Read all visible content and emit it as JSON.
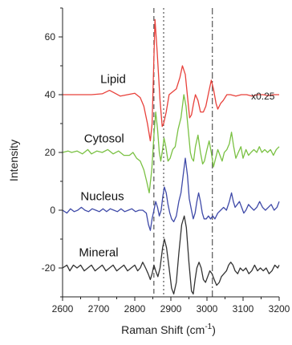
{
  "chart_data": {
    "type": "line",
    "title": "",
    "xlabel": "Raman Shift (cm",
    "xlabel_sup": "-1",
    "xlabel_close": ")",
    "ylabel": "Intensity",
    "xlim": [
      2600,
      3200
    ],
    "ylim": [
      -30,
      70
    ],
    "x_ticks": [
      2600,
      2700,
      2800,
      2900,
      3000,
      3100,
      3200
    ],
    "y_ticks": [
      -20,
      0,
      20,
      40,
      60
    ],
    "grid": false,
    "reference_lines": [
      {
        "x": 2853,
        "style": "dashed"
      },
      {
        "x": 2880,
        "style": "dotted"
      },
      {
        "x": 3015,
        "style": "dashdot"
      }
    ],
    "series": [
      {
        "name": "Lipid",
        "color": "#e8413b",
        "annotation": "x0.25",
        "points": [
          [
            2600,
            40
          ],
          [
            2640,
            40
          ],
          [
            2680,
            40
          ],
          [
            2710,
            40.3
          ],
          [
            2730,
            41.5
          ],
          [
            2745,
            40.5
          ],
          [
            2760,
            39.5
          ],
          [
            2780,
            40
          ],
          [
            2800,
            40.5
          ],
          [
            2815,
            39
          ],
          [
            2825,
            36
          ],
          [
            2835,
            30
          ],
          [
            2843,
            24
          ],
          [
            2848,
            30
          ],
          [
            2852,
            48
          ],
          [
            2856,
            66
          ],
          [
            2862,
            55
          ],
          [
            2870,
            38
          ],
          [
            2876,
            29
          ],
          [
            2880,
            30
          ],
          [
            2887,
            34
          ],
          [
            2895,
            40
          ],
          [
            2905,
            41
          ],
          [
            2915,
            42
          ],
          [
            2925,
            46
          ],
          [
            2932,
            50
          ],
          [
            2940,
            47
          ],
          [
            2947,
            38
          ],
          [
            2952,
            32
          ],
          [
            2957,
            33
          ],
          [
            2963,
            37
          ],
          [
            2968,
            40
          ],
          [
            2975,
            38
          ],
          [
            2982,
            34
          ],
          [
            2990,
            34
          ],
          [
            2997,
            36
          ],
          [
            3005,
            41
          ],
          [
            3012,
            45
          ],
          [
            3018,
            42
          ],
          [
            3025,
            37
          ],
          [
            3030,
            35
          ],
          [
            3038,
            37
          ],
          [
            3045,
            38
          ],
          [
            3055,
            40
          ],
          [
            3065,
            40
          ],
          [
            3080,
            39.5
          ],
          [
            3095,
            40
          ],
          [
            3110,
            40
          ],
          [
            3125,
            39.5
          ],
          [
            3140,
            40
          ],
          [
            3155,
            40
          ],
          [
            3170,
            39.7
          ],
          [
            3185,
            40
          ],
          [
            3200,
            40
          ]
        ]
      },
      {
        "name": "Cytosol",
        "color": "#7ac143",
        "points": [
          [
            2600,
            20
          ],
          [
            2615,
            20.5
          ],
          [
            2625,
            20
          ],
          [
            2640,
            20.5
          ],
          [
            2655,
            19.5
          ],
          [
            2670,
            21
          ],
          [
            2680,
            19.5
          ],
          [
            2695,
            20.5
          ],
          [
            2710,
            20
          ],
          [
            2725,
            21
          ],
          [
            2740,
            19.5
          ],
          [
            2755,
            20.5
          ],
          [
            2770,
            19
          ],
          [
            2785,
            19
          ],
          [
            2795,
            20
          ],
          [
            2805,
            18
          ],
          [
            2815,
            17
          ],
          [
            2825,
            14
          ],
          [
            2833,
            10
          ],
          [
            2840,
            6
          ],
          [
            2847,
            14
          ],
          [
            2853,
            26
          ],
          [
            2858,
            34
          ],
          [
            2863,
            28
          ],
          [
            2868,
            20
          ],
          [
            2872,
            17
          ],
          [
            2877,
            21
          ],
          [
            2881,
            25
          ],
          [
            2886,
            22
          ],
          [
            2892,
            17
          ],
          [
            2898,
            18
          ],
          [
            2905,
            21
          ],
          [
            2912,
            22
          ],
          [
            2920,
            28
          ],
          [
            2928,
            32
          ],
          [
            2936,
            40
          ],
          [
            2942,
            36
          ],
          [
            2948,
            28
          ],
          [
            2954,
            20
          ],
          [
            2958,
            18
          ],
          [
            2963,
            17
          ],
          [
            2968,
            22
          ],
          [
            2975,
            26
          ],
          [
            2982,
            20
          ],
          [
            2988,
            16
          ],
          [
            2993,
            17
          ],
          [
            3000,
            21
          ],
          [
            3006,
            24
          ],
          [
            3012,
            20
          ],
          [
            3018,
            15
          ],
          [
            3024,
            18
          ],
          [
            3030,
            21
          ],
          [
            3036,
            19
          ],
          [
            3042,
            17
          ],
          [
            3048,
            20
          ],
          [
            3055,
            21
          ],
          [
            3062,
            23
          ],
          [
            3068,
            27
          ],
          [
            3074,
            22
          ],
          [
            3080,
            18
          ],
          [
            3087,
            20
          ],
          [
            3094,
            22
          ],
          [
            3100,
            18
          ],
          [
            3108,
            21
          ],
          [
            3115,
            19
          ],
          [
            3122,
            20
          ],
          [
            3130,
            21
          ],
          [
            3138,
            20
          ],
          [
            3145,
            22
          ],
          [
            3152,
            20
          ],
          [
            3160,
            21
          ],
          [
            3168,
            20
          ],
          [
            3176,
            21
          ],
          [
            3184,
            19
          ],
          [
            3192,
            21
          ],
          [
            3200,
            22
          ]
        ]
      },
      {
        "name": "Nucleus",
        "color": "#3f4aa8",
        "points": [
          [
            2600,
            0
          ],
          [
            2612,
            -1
          ],
          [
            2622,
            0.5
          ],
          [
            2632,
            -0.5
          ],
          [
            2642,
            0
          ],
          [
            2652,
            1
          ],
          [
            2662,
            0
          ],
          [
            2672,
            -0.5
          ],
          [
            2682,
            0.5
          ],
          [
            2692,
            0
          ],
          [
            2702,
            -0.5
          ],
          [
            2712,
            0.5
          ],
          [
            2722,
            -0.5
          ],
          [
            2732,
            0.5
          ],
          [
            2742,
            0
          ],
          [
            2752,
            -0.5
          ],
          [
            2762,
            0.5
          ],
          [
            2772,
            -0.5
          ],
          [
            2782,
            0
          ],
          [
            2792,
            0.5
          ],
          [
            2802,
            -0.5
          ],
          [
            2812,
            0
          ],
          [
            2822,
            0
          ],
          [
            2832,
            -1
          ],
          [
            2838,
            -5
          ],
          [
            2843,
            -7
          ],
          [
            2848,
            -3
          ],
          [
            2853,
            0
          ],
          [
            2858,
            3
          ],
          [
            2863,
            1
          ],
          [
            2868,
            -2
          ],
          [
            2873,
            0
          ],
          [
            2878,
            5
          ],
          [
            2882,
            8
          ],
          [
            2887,
            6
          ],
          [
            2892,
            2
          ],
          [
            2897,
            -1
          ],
          [
            2902,
            -3
          ],
          [
            2908,
            -4
          ],
          [
            2915,
            -2
          ],
          [
            2922,
            3
          ],
          [
            2928,
            6
          ],
          [
            2934,
            12
          ],
          [
            2940,
            18
          ],
          [
            2946,
            12
          ],
          [
            2951,
            4
          ],
          [
            2957,
            0
          ],
          [
            2962,
            -3
          ],
          [
            2967,
            -1
          ],
          [
            2972,
            3
          ],
          [
            2977,
            6
          ],
          [
            2982,
            3
          ],
          [
            2987,
            -1
          ],
          [
            2992,
            -3
          ],
          [
            2998,
            -3
          ],
          [
            3004,
            -2
          ],
          [
            3010,
            -3
          ],
          [
            3016,
            -2
          ],
          [
            3022,
            -3
          ],
          [
            3030,
            -1
          ],
          [
            3038,
            0
          ],
          [
            3046,
            1
          ],
          [
            3054,
            0
          ],
          [
            3062,
            3
          ],
          [
            3068,
            6
          ],
          [
            3073,
            3
          ],
          [
            3078,
            1
          ],
          [
            3084,
            2
          ],
          [
            3090,
            3
          ],
          [
            3096,
            1
          ],
          [
            3102,
            -1
          ],
          [
            3108,
            0
          ],
          [
            3115,
            2
          ],
          [
            3122,
            1
          ],
          [
            3130,
            0
          ],
          [
            3138,
            1
          ],
          [
            3146,
            3
          ],
          [
            3154,
            1
          ],
          [
            3162,
            0
          ],
          [
            3170,
            1
          ],
          [
            3178,
            2
          ],
          [
            3186,
            0
          ],
          [
            3194,
            1
          ],
          [
            3200,
            3
          ]
        ]
      },
      {
        "name": "Mineral",
        "color": "#333333",
        "points": [
          [
            2600,
            -20
          ],
          [
            2612,
            -19
          ],
          [
            2620,
            -21
          ],
          [
            2630,
            -19
          ],
          [
            2640,
            -20
          ],
          [
            2650,
            -19
          ],
          [
            2660,
            -21
          ],
          [
            2670,
            -20
          ],
          [
            2680,
            -19
          ],
          [
            2690,
            -21
          ],
          [
            2700,
            -20
          ],
          [
            2710,
            -19
          ],
          [
            2720,
            -21
          ],
          [
            2730,
            -20
          ],
          [
            2740,
            -19
          ],
          [
            2750,
            -21
          ],
          [
            2760,
            -20
          ],
          [
            2770,
            -19
          ],
          [
            2780,
            -21
          ],
          [
            2790,
            -20
          ],
          [
            2800,
            -19
          ],
          [
            2808,
            -21
          ],
          [
            2815,
            -20
          ],
          [
            2822,
            -18
          ],
          [
            2830,
            -20
          ],
          [
            2837,
            -22
          ],
          [
            2843,
            -24
          ],
          [
            2848,
            -22
          ],
          [
            2853,
            -19
          ],
          [
            2858,
            -21
          ],
          [
            2864,
            -23
          ],
          [
            2870,
            -20
          ],
          [
            2877,
            -13
          ],
          [
            2882,
            -10
          ],
          [
            2888,
            -13
          ],
          [
            2895,
            -20
          ],
          [
            2902,
            -27
          ],
          [
            2908,
            -29
          ],
          [
            2915,
            -25
          ],
          [
            2922,
            -15
          ],
          [
            2930,
            -5
          ],
          [
            2937,
            -2
          ],
          [
            2943,
            -6
          ],
          [
            2950,
            -18
          ],
          [
            2957,
            -28
          ],
          [
            2962,
            -29
          ],
          [
            2967,
            -24
          ],
          [
            2972,
            -20
          ],
          [
            2978,
            -18
          ],
          [
            2984,
            -20
          ],
          [
            2990,
            -24
          ],
          [
            2996,
            -25
          ],
          [
            3002,
            -23
          ],
          [
            3008,
            -21
          ],
          [
            3014,
            -22
          ],
          [
            3020,
            -24
          ],
          [
            3027,
            -26
          ],
          [
            3034,
            -25
          ],
          [
            3040,
            -23
          ],
          [
            3047,
            -22
          ],
          [
            3054,
            -21
          ],
          [
            3060,
            -19
          ],
          [
            3066,
            -18
          ],
          [
            3072,
            -19
          ],
          [
            3078,
            -21
          ],
          [
            3085,
            -22
          ],
          [
            3092,
            -20
          ],
          [
            3100,
            -21
          ],
          [
            3108,
            -20
          ],
          [
            3116,
            -22
          ],
          [
            3124,
            -21
          ],
          [
            3132,
            -19
          ],
          [
            3140,
            -21
          ],
          [
            3148,
            -20
          ],
          [
            3156,
            -21
          ],
          [
            3164,
            -20
          ],
          [
            3172,
            -22
          ],
          [
            3180,
            -21
          ],
          [
            3188,
            -19
          ],
          [
            3196,
            -20
          ],
          [
            3200,
            -19
          ]
        ]
      }
    ]
  }
}
